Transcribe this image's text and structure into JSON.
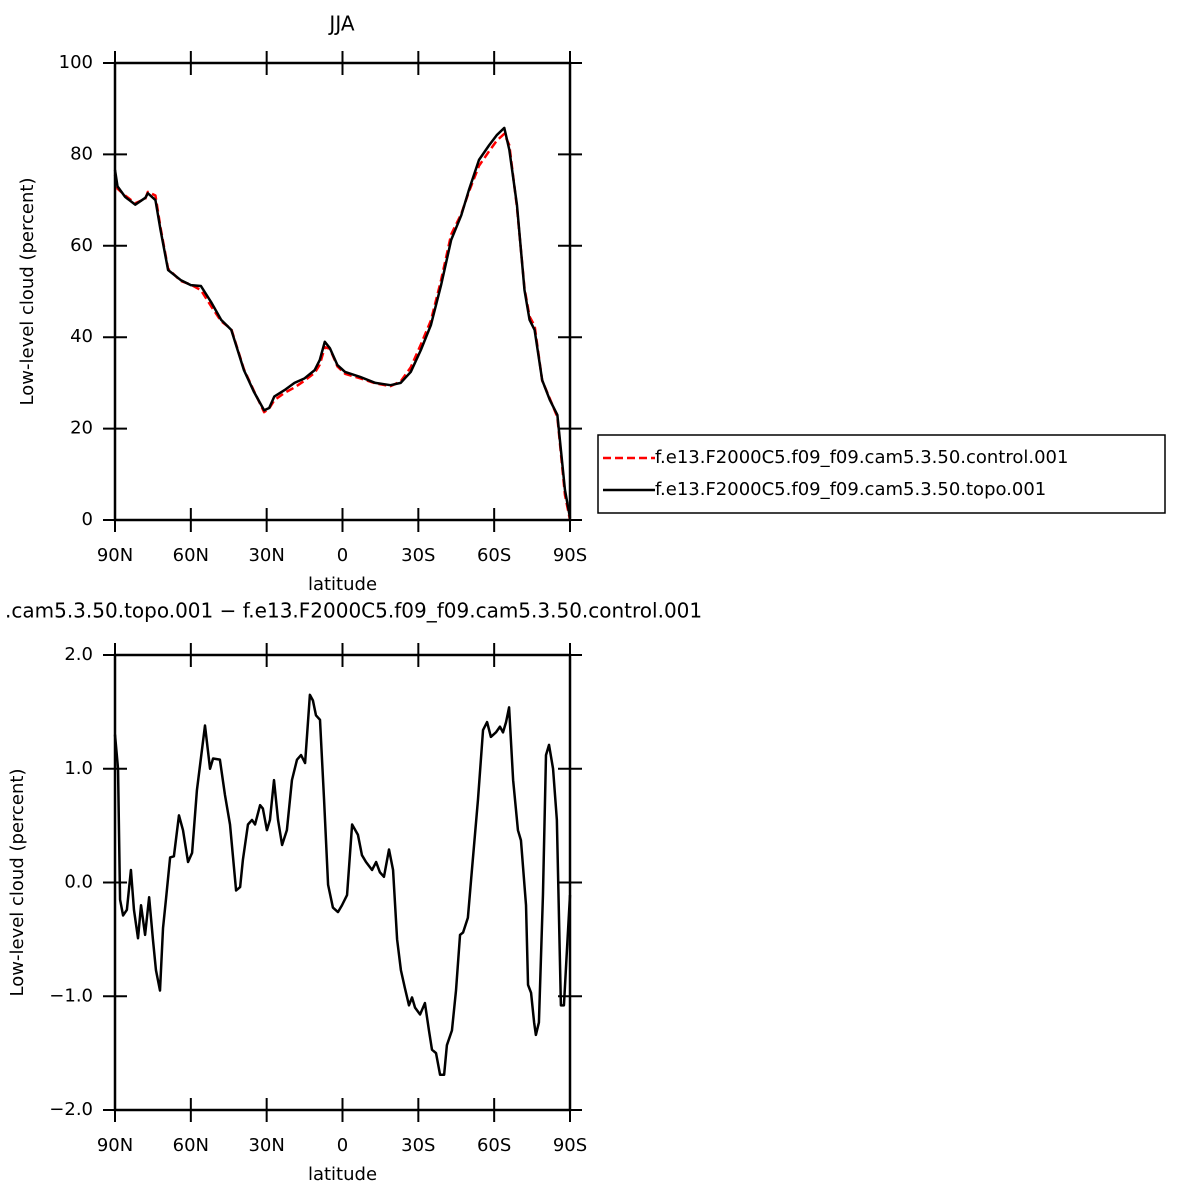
{
  "chart_data": [
    {
      "type": "line",
      "title": "JJA",
      "x_label": "latitude",
      "y_label": "Low-level cloud (percent)",
      "x": [
        90,
        89,
        86,
        82,
        78,
        77,
        74,
        72,
        69,
        64,
        60,
        56,
        52,
        48,
        44,
        39,
        35,
        31,
        29,
        27,
        23,
        19,
        15,
        11,
        9,
        7,
        5,
        2,
        -1,
        -7,
        -13,
        -19,
        -23,
        -27,
        -31,
        -35,
        -39,
        -43,
        -47,
        -50,
        -54,
        -58,
        -61,
        -64,
        -66,
        -69,
        -72,
        -74,
        -76,
        -79,
        -82,
        -85,
        -88,
        -90
      ],
      "series": [
        {
          "name": "f.e13.F2000C5.f09_f09.cam5.3.50.control.001",
          "color": "#ff0000",
          "line_style": "dashed",
          "values": [
            75.5,
            72.5,
            71,
            69.3,
            70.3,
            71.8,
            71,
            64,
            55,
            52.3,
            51.5,
            50.3,
            46.8,
            43.5,
            41.8,
            33,
            28.2,
            23.6,
            24.4,
            26.2,
            27.8,
            29,
            30.5,
            32.2,
            34,
            37.8,
            37.5,
            33.6,
            32,
            31,
            29.9,
            29.3,
            30.3,
            33.4,
            38.4,
            43.7,
            52.5,
            62.5,
            67,
            71.8,
            77.5,
            80.7,
            83,
            84.5,
            82,
            68.5,
            50.7,
            44.5,
            42.5,
            30.5,
            26.6,
            22.5,
            5.5,
            0
          ]
        },
        {
          "name": "f.e13.F2000C5.f09_f09.cam5.3.50.topo.001",
          "color": "#000000",
          "line_style": "solid",
          "values": [
            76.6,
            73,
            70.7,
            69,
            70.5,
            71.5,
            70,
            63.5,
            54.7,
            52.5,
            51.4,
            51.2,
            47.7,
            43.8,
            41.6,
            32.8,
            28,
            24,
            24.5,
            27,
            28.4,
            30,
            31,
            32.8,
            35,
            39,
            37.6,
            33.9,
            32.4,
            31.3,
            30,
            29.5,
            30,
            32.4,
            37.2,
            42.7,
            51.4,
            61.3,
            66.7,
            72.2,
            78.8,
            82,
            84.2,
            85.8,
            81,
            69,
            50.3,
            43.8,
            41.6,
            30.6,
            26.3,
            23,
            6.6,
            0.5
          ]
        }
      ],
      "xlim": [
        90,
        -90
      ],
      "xticks": [
        {
          "value": 90,
          "label": "90N"
        },
        {
          "value": 60,
          "label": "60N"
        },
        {
          "value": 30,
          "label": "30N"
        },
        0,
        {
          "value": -30,
          "label": "30S"
        },
        {
          "value": -60,
          "label": "60S"
        },
        {
          "value": -90,
          "label": "90S"
        }
      ],
      "ylim": [
        0,
        100
      ],
      "yticks": [
        0,
        20,
        40,
        60,
        80,
        100
      ],
      "legend": "outside-right"
    },
    {
      "type": "line",
      "title": ".cam5.3.50.topo.001 − f.e13.F2000C5.f09_f09.cam5.3.50.control.001",
      "x_label": "latitude",
      "y_label": "Low-level cloud (percent)",
      "x": [
        90,
        88.8,
        88.0,
        86.8,
        85.3,
        83.7,
        82.5,
        80.9,
        79.7,
        78.1,
        76.5,
        75.0,
        73.8,
        72.2,
        71.0,
        69.8,
        68.2,
        66.7,
        64.7,
        63.1,
        61.1,
        59.5,
        57.6,
        54.4,
        52.4,
        51.2,
        48.5,
        46.5,
        44.5,
        43.3,
        42.1,
        40.5,
        39.4,
        37.4,
        35.8,
        34.6,
        32.6,
        31.5,
        29.9,
        28.7,
        27.1,
        25.5,
        23.9,
        22.0,
        20.0,
        18.0,
        16.4,
        14.8,
        12.9,
        11.7,
        10.5,
        8.9,
        7.3,
        5.7,
        3.8,
        1.8,
        0.2,
        -1.8,
        -3.8,
        -6.1,
        -7.7,
        -9.3,
        -11.7,
        -13.3,
        -14.8,
        -16.4,
        -18.4,
        -20.0,
        -21.6,
        -23.1,
        -24.7,
        -26.3,
        -27.5,
        -28.7,
        -30.7,
        -32.6,
        -34.2,
        -35.4,
        -37.0,
        -38.6,
        -40.2,
        -41.3,
        -43.3,
        -44.9,
        -46.5,
        -47.7,
        -49.6,
        -51.2,
        -53.6,
        -55.6,
        -57.2,
        -58.7,
        -60.7,
        -62.3,
        -63.5,
        -64.7,
        -65.9,
        -67.5,
        -69.4,
        -70.6,
        -72.6,
        -73.4,
        -74.6,
        -75.8,
        -76.5,
        -77.7,
        -79.3,
        -80.5,
        -81.7,
        -83.3,
        -84.8,
        -86.4,
        -87.6,
        -88.8,
        -90.0
      ],
      "series": [
        {
          "color": "#000000",
          "line_style": "solid",
          "values": [
            1.3,
            1.0,
            -0.15,
            -0.29,
            -0.24,
            0.11,
            -0.24,
            -0.49,
            -0.2,
            -0.46,
            -0.13,
            -0.5,
            -0.77,
            -0.95,
            -0.4,
            -0.14,
            0.22,
            0.23,
            0.59,
            0.46,
            0.18,
            0.26,
            0.81,
            1.38,
            1.0,
            1.09,
            1.08,
            0.77,
            0.51,
            0.22,
            -0.07,
            -0.04,
            0.2,
            0.51,
            0.55,
            0.51,
            0.68,
            0.65,
            0.46,
            0.55,
            0.9,
            0.55,
            0.33,
            0.46,
            0.9,
            1.08,
            1.12,
            1.05,
            1.65,
            1.6,
            1.47,
            1.43,
            0.73,
            -0.02,
            -0.22,
            -0.26,
            -0.2,
            -0.11,
            0.51,
            0.42,
            0.24,
            0.18,
            0.11,
            0.18,
            0.09,
            0.05,
            0.29,
            0.11,
            -0.5,
            -0.77,
            -0.93,
            -1.08,
            -1.01,
            -1.1,
            -1.16,
            -1.06,
            -1.3,
            -1.47,
            -1.5,
            -1.69,
            -1.69,
            -1.43,
            -1.3,
            -0.95,
            -0.46,
            -0.44,
            -0.31,
            0.11,
            0.73,
            1.34,
            1.41,
            1.28,
            1.32,
            1.37,
            1.32,
            1.41,
            1.54,
            0.9,
            0.46,
            0.37,
            -0.2,
            -0.9,
            -0.97,
            -1.23,
            -1.34,
            -1.23,
            -0.11,
            1.12,
            1.21,
            1.0,
            0.55,
            -1.08,
            -1.08,
            -0.59,
            -0.11
          ]
        }
      ],
      "xlim": [
        90,
        -90
      ],
      "xticks": [
        {
          "value": 90,
          "label": "90N"
        },
        {
          "value": 60,
          "label": "60N"
        },
        {
          "value": 30,
          "label": "30N"
        },
        0,
        {
          "value": -30,
          "label": "30S"
        },
        {
          "value": -60,
          "label": "60S"
        },
        {
          "value": -90,
          "label": "90S"
        }
      ],
      "ylim": [
        -2,
        2
      ],
      "yticks": [
        {
          "value": -2,
          "label": "−2.0"
        },
        {
          "value": -1,
          "label": "−1.0"
        },
        {
          "value": 0,
          "label": "0.0"
        },
        {
          "value": 1,
          "label": "1.0"
        },
        {
          "value": 2,
          "label": "2.0"
        }
      ]
    }
  ]
}
